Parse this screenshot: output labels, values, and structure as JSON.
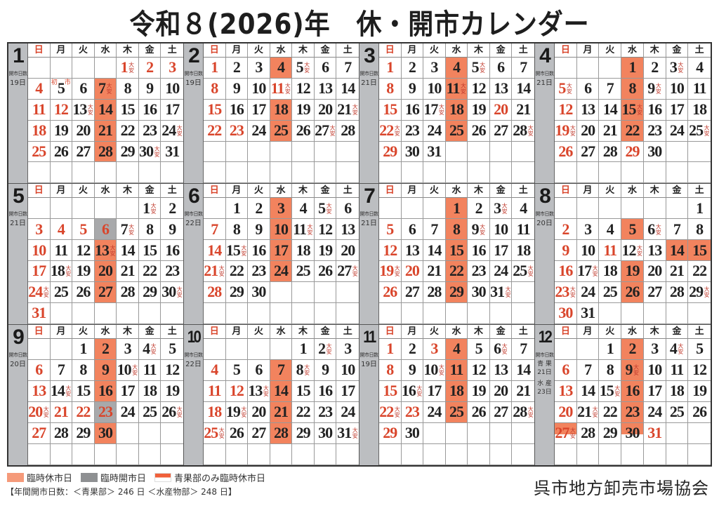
{
  "title": "令和８(2026)年　休・開市カレンダー",
  "weekdays": [
    "日",
    "月",
    "火",
    "水",
    "木",
    "金",
    "土"
  ],
  "colors": {
    "closed": "#f2835e",
    "open": "#a8a9ab",
    "holiday_text": "#d9452b",
    "strip": "#bcbec1"
  },
  "count_label": "開市日数",
  "taian_label": "大安",
  "months": [
    {
      "month": "1",
      "count": "19日",
      "first_weekday": 4,
      "days": 31,
      "holidays": [
        1,
        2,
        3,
        12
      ],
      "closed": [
        7,
        14,
        21,
        28
      ],
      "open": [],
      "half": [],
      "taian": [
        1,
        7,
        13,
        24,
        30
      ],
      "special": {
        "day": 5,
        "left": "初",
        "right": "市"
      }
    },
    {
      "month": "2",
      "count": "19日",
      "first_weekday": 0,
      "days": 28,
      "holidays": [
        11,
        23
      ],
      "closed": [
        4,
        18,
        25
      ],
      "open": [],
      "half": [],
      "taian": [
        5,
        11,
        21,
        27
      ]
    },
    {
      "month": "3",
      "count": "21日",
      "first_weekday": 0,
      "days": 31,
      "holidays": [
        20
      ],
      "closed": [
        4,
        11,
        18,
        25
      ],
      "open": [],
      "half": [],
      "taian": [
        5,
        11,
        17,
        22,
        28
      ]
    },
    {
      "month": "4",
      "count": "21日",
      "first_weekday": 3,
      "days": 30,
      "holidays": [
        29
      ],
      "closed": [
        1,
        8,
        15,
        22
      ],
      "open": [],
      "half": [],
      "taian": [
        3,
        5,
        9,
        15,
        19,
        25
      ]
    },
    {
      "month": "5",
      "count": "21日",
      "first_weekday": 5,
      "days": 31,
      "holidays": [
        4,
        5,
        6
      ],
      "closed": [
        13,
        20,
        27
      ],
      "open": [
        6
      ],
      "half": [],
      "taian": [
        1,
        7,
        13,
        18,
        24,
        30
      ]
    },
    {
      "month": "6",
      "count": "22日",
      "first_weekday": 1,
      "days": 30,
      "holidays": [],
      "closed": [
        3,
        10,
        17,
        24
      ],
      "open": [],
      "half": [],
      "taian": [
        5,
        11,
        15,
        21,
        27
      ]
    },
    {
      "month": "7",
      "count": "21日",
      "first_weekday": 3,
      "days": 31,
      "holidays": [
        20
      ],
      "closed": [
        1,
        8,
        15,
        22,
        29
      ],
      "open": [],
      "half": [],
      "taian": [
        3,
        9,
        19,
        25,
        31
      ]
    },
    {
      "month": "8",
      "count": "20日",
      "first_weekday": 6,
      "days": 31,
      "holidays": [
        11
      ],
      "closed": [
        5,
        14,
        15,
        19,
        26
      ],
      "open": [],
      "half": [],
      "taian": [
        6,
        12,
        17,
        23,
        29
      ]
    },
    {
      "month": "9",
      "count": "20日",
      "first_weekday": 2,
      "days": 30,
      "holidays": [
        21,
        22,
        23
      ],
      "closed": [
        2,
        9,
        16,
        30
      ],
      "open": [
        23
      ],
      "half": [],
      "taian": [
        4,
        10,
        14,
        20,
        26
      ]
    },
    {
      "month": "10",
      "count": "22日",
      "first_weekday": 4,
      "days": 31,
      "holidays": [
        12
      ],
      "closed": [
        7,
        14,
        21,
        28
      ],
      "open": [],
      "half": [],
      "taian": [
        2,
        8,
        13,
        19,
        25,
        31
      ]
    },
    {
      "month": "11",
      "count": "19日",
      "first_weekday": 0,
      "days": 30,
      "holidays": [
        3,
        23
      ],
      "closed": [
        4,
        11,
        18,
        25
      ],
      "open": [],
      "half": [],
      "taian": [
        6,
        10,
        16,
        22,
        28
      ]
    },
    {
      "month": "12",
      "counts": [
        {
          "dept": "青 果",
          "value": "21日"
        },
        {
          "dept": "水 産",
          "value": "23日"
        }
      ],
      "first_weekday": 2,
      "days": 31,
      "holidays": [
        31
      ],
      "closed": [
        2,
        9,
        16,
        23
      ],
      "open": [],
      "half": [
        27,
        30
      ],
      "taian": [
        4,
        9,
        15,
        21,
        27
      ]
    }
  ],
  "legend": {
    "closed": "臨時休市日",
    "open": "臨時開市日",
    "half": "青果部のみ臨時休市日"
  },
  "annual": "【年間開市日数：＜青果部＞ 246 日 ＜水産物部＞ 248 日】",
  "organization": "呉市地方卸売市場協会"
}
